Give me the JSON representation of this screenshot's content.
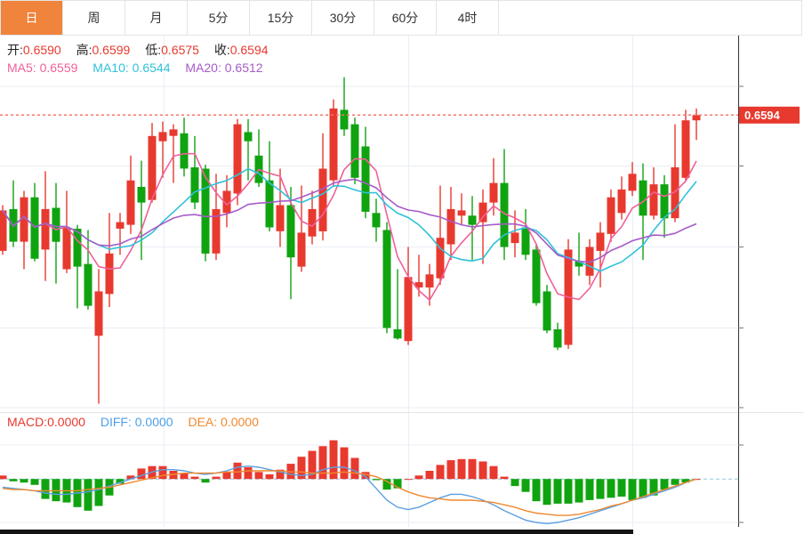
{
  "tabs": {
    "items": [
      {
        "name": "day",
        "label": "日",
        "active": true
      },
      {
        "name": "week",
        "label": "周",
        "active": false
      },
      {
        "name": "month",
        "label": "月",
        "active": false
      },
      {
        "name": "5min",
        "label": "5分",
        "active": false
      },
      {
        "name": "15min",
        "label": "15分",
        "active": false
      },
      {
        "name": "30min",
        "label": "30分",
        "active": false
      },
      {
        "name": "60min",
        "label": "60分",
        "active": false
      },
      {
        "name": "4hour",
        "label": "4时",
        "active": false
      }
    ]
  },
  "ohlc": {
    "open_label": "开:",
    "open": "0.6590",
    "high_label": "高:",
    "high": "0.6599",
    "low_label": "低:",
    "low": "0.6575",
    "close_label": "收:",
    "close": "0.6594"
  },
  "ma_info": [
    {
      "label": "MA5:",
      "value": "0.6559",
      "color": "#f0609a"
    },
    {
      "label": "MA10:",
      "value": "0.6544",
      "color": "#2fc2d9"
    },
    {
      "label": "MA20:",
      "value": "0.6512",
      "color": "#a65cc8"
    }
  ],
  "macd_info": [
    {
      "label": "MACD:",
      "value": "0.0000",
      "color": "#e8392f"
    },
    {
      "label": "DIFF:",
      "value": "0.0000",
      "color": "#4d9fe8"
    },
    {
      "label": "DEA:",
      "value": "0.0000",
      "color": "#f0882e"
    }
  ],
  "colors": {
    "up": "#e8392f",
    "down": "#10a310",
    "ma5": "#f0609a",
    "ma10": "#2fc2d9",
    "ma20": "#a65cc8",
    "diff": "#5b9fe0",
    "dea": "#f0882e",
    "active_tab": "#f0843c",
    "last_price_line": "#f4766a",
    "last_price_tag_bg": "#e8392f",
    "grid": "#e9eef5",
    "axis_line": "#333333",
    "axis_text": "#333333",
    "zero_dash": "#8fc8e0",
    "scrollbar": "#141414"
  },
  "chart_data": [
    {
      "type": "candlestick",
      "title": "",
      "legend_position": "top-left",
      "grid": true,
      "y_axis": {
        "ticks": [
          "0.6616",
          "0.6555",
          "0.6493",
          "0.6431",
          "0.6370"
        ],
        "min": 0.637,
        "max": 0.6616
      },
      "last_price": "0.6594",
      "ma_periods": [
        5,
        10,
        20
      ],
      "candles_ohlc": [
        [
          0.649,
          0.6525,
          0.6487,
          0.6521
        ],
        [
          0.6522,
          0.6544,
          0.6493,
          0.6497
        ],
        [
          0.6497,
          0.6536,
          0.6476,
          0.6531
        ],
        [
          0.6531,
          0.6542,
          0.6482,
          0.6484
        ],
        [
          0.6491,
          0.6551,
          0.6467,
          0.6522
        ],
        [
          0.6523,
          0.6542,
          0.6465,
          0.6497
        ],
        [
          0.6476,
          0.6536,
          0.6473,
          0.6508
        ],
        [
          0.6507,
          0.651,
          0.6446,
          0.6478
        ],
        [
          0.648,
          0.6506,
          0.6445,
          0.6448
        ],
        [
          0.6425,
          0.6476,
          0.6373,
          0.6459
        ],
        [
          0.6457,
          0.6519,
          0.6447,
          0.6488
        ],
        [
          0.6507,
          0.6519,
          0.6487,
          0.6512
        ],
        [
          0.651,
          0.6563,
          0.6503,
          0.6544
        ],
        [
          0.6539,
          0.6559,
          0.6483,
          0.6527
        ],
        [
          0.6529,
          0.6588,
          0.6527,
          0.6578
        ],
        [
          0.6574,
          0.6589,
          0.6546,
          0.6581
        ],
        [
          0.6578,
          0.6587,
          0.6542,
          0.6583
        ],
        [
          0.658,
          0.6592,
          0.6547,
          0.6553
        ],
        [
          0.6554,
          0.6578,
          0.6522,
          0.6527
        ],
        [
          0.6553,
          0.6556,
          0.6482,
          0.6488
        ],
        [
          0.6488,
          0.6549,
          0.6483,
          0.6522
        ],
        [
          0.6519,
          0.6548,
          0.6508,
          0.6536
        ],
        [
          0.6534,
          0.6591,
          0.6525,
          0.6587
        ],
        [
          0.6581,
          0.6591,
          0.6544,
          0.6574
        ],
        [
          0.6563,
          0.6583,
          0.6539,
          0.6542
        ],
        [
          0.6544,
          0.6574,
          0.6505,
          0.6508
        ],
        [
          0.6505,
          0.6553,
          0.6493,
          0.6525
        ],
        [
          0.6525,
          0.6539,
          0.6453,
          0.6485
        ],
        [
          0.6478,
          0.654,
          0.6474,
          0.6504
        ],
        [
          0.6501,
          0.6536,
          0.6495,
          0.6522
        ],
        [
          0.6505,
          0.658,
          0.6498,
          0.6553
        ],
        [
          0.6544,
          0.6606,
          0.6539,
          0.6599
        ],
        [
          0.6598,
          0.6623,
          0.6578,
          0.6583
        ],
        [
          0.6587,
          0.6592,
          0.6541,
          0.6546
        ],
        [
          0.657,
          0.6585,
          0.6515,
          0.652
        ],
        [
          0.6519,
          0.653,
          0.6497,
          0.6508
        ],
        [
          0.6506,
          0.6512,
          0.6427,
          0.6431
        ],
        [
          0.643,
          0.6476,
          0.6422,
          0.6423
        ],
        [
          0.6421,
          0.6493,
          0.6418,
          0.647
        ],
        [
          0.6462,
          0.6487,
          0.6455,
          0.6466
        ],
        [
          0.6462,
          0.648,
          0.6448,
          0.6472
        ],
        [
          0.6469,
          0.654,
          0.6464,
          0.65
        ],
        [
          0.6495,
          0.6539,
          0.6483,
          0.6522
        ],
        [
          0.6517,
          0.6534,
          0.651,
          0.6521
        ],
        [
          0.6517,
          0.6532,
          0.6483,
          0.651
        ],
        [
          0.6512,
          0.6537,
          0.648,
          0.6527
        ],
        [
          0.6527,
          0.6561,
          0.6517,
          0.6542
        ],
        [
          0.6542,
          0.6568,
          0.6483,
          0.6493
        ],
        [
          0.6496,
          0.6521,
          0.6485,
          0.6504
        ],
        [
          0.6508,
          0.6522,
          0.6483,
          0.6487
        ],
        [
          0.6491,
          0.6495,
          0.6448,
          0.645
        ],
        [
          0.6459,
          0.6464,
          0.6427,
          0.6429
        ],
        [
          0.643,
          0.6435,
          0.6414,
          0.6416
        ],
        [
          0.6418,
          0.6499,
          0.6415,
          0.6491
        ],
        [
          0.6482,
          0.6504,
          0.6471,
          0.6478
        ],
        [
          0.6471,
          0.6499,
          0.6464,
          0.6493
        ],
        [
          0.649,
          0.6512,
          0.6462,
          0.6504
        ],
        [
          0.6503,
          0.6537,
          0.6497,
          0.6531
        ],
        [
          0.6519,
          0.6547,
          0.6514,
          0.6537
        ],
        [
          0.6536,
          0.6558,
          0.6532,
          0.6549
        ],
        [
          0.6544,
          0.6557,
          0.6483,
          0.6517
        ],
        [
          0.6517,
          0.6554,
          0.6514,
          0.6541
        ],
        [
          0.6541,
          0.6548,
          0.65,
          0.6515
        ],
        [
          0.6515,
          0.6587,
          0.6512,
          0.6554
        ],
        [
          0.6546,
          0.6598,
          0.6544,
          0.659
        ],
        [
          0.659,
          0.6599,
          0.6575,
          0.6594
        ]
      ]
    },
    {
      "type": "bar",
      "title": "MACD",
      "y_axis": {
        "ticks": [
          "0.0029",
          "-0.0037"
        ],
        "min": -0.0037,
        "max": 0.0029
      },
      "unit": 0.0001,
      "histogram": [
        3,
        -2,
        -3,
        -5,
        -17,
        -19,
        -20,
        -24,
        -27,
        -23,
        -14,
        -4,
        3,
        9,
        11,
        11,
        7,
        5,
        2,
        -3,
        2,
        6,
        14,
        10,
        6,
        4,
        8,
        13,
        19,
        24,
        28,
        33,
        27,
        18,
        6,
        -1,
        -9,
        -8,
        0,
        3,
        7,
        12,
        16,
        17,
        17,
        15,
        11,
        2,
        -6,
        -11,
        -19,
        -22,
        -21,
        -21,
        -20,
        -18,
        -17,
        -16,
        -15,
        -18,
        -16,
        -14,
        -9,
        -5,
        -3,
        0
      ],
      "diff": [
        -7,
        -8,
        -9,
        -10,
        -12,
        -13,
        -13,
        -12,
        -11,
        -9,
        -6,
        -3,
        0,
        3,
        6,
        8,
        8,
        7,
        5,
        4,
        5,
        7,
        10,
        11,
        10,
        8,
        6,
        4,
        3,
        4,
        8,
        10,
        10,
        7,
        2,
        -8,
        -18,
        -24,
        -26,
        -24,
        -20,
        -16,
        -13,
        -13,
        -15,
        -18,
        -22,
        -27,
        -31,
        -35,
        -37,
        -38,
        -37,
        -35,
        -33,
        -30,
        -27,
        -24,
        -21,
        -18,
        -16,
        -13,
        -10,
        -7,
        -3,
        0
      ],
      "dea": [
        -8,
        -9,
        -9,
        -10,
        -10,
        -10,
        -10,
        -10,
        -9,
        -8,
        -7,
        -5,
        -3,
        -1,
        1,
        3,
        4,
        5,
        5,
        5,
        5,
        6,
        6,
        7,
        7,
        7,
        7,
        6,
        6,
        5,
        5,
        5,
        6,
        5,
        4,
        2,
        -2,
        -7,
        -11,
        -14,
        -16,
        -17,
        -18,
        -18,
        -18,
        -19,
        -20,
        -22,
        -24,
        -27,
        -29,
        -30,
        -31,
        -31,
        -30,
        -28,
        -26,
        -23,
        -21,
        -18,
        -15,
        -12,
        -9,
        -6,
        -3,
        0
      ]
    }
  ]
}
